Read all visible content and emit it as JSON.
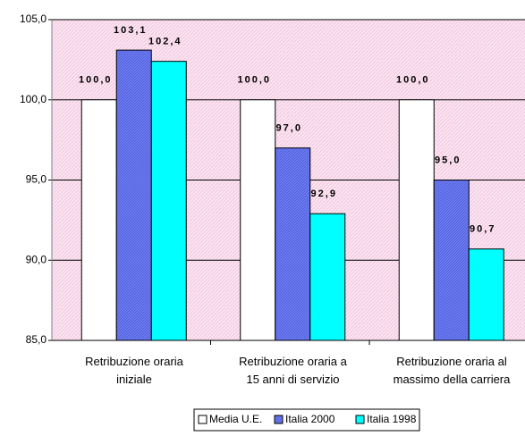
{
  "chart_data": {
    "type": "bar",
    "categories": [
      "Retribuzione  oraria\niniziale",
      "Retribuzione oraria a\n15 anni di servizio",
      "Retribuzione oraria al\nmassimo della carriera"
    ],
    "series": [
      {
        "name": "Media U.E.",
        "color": "#ffffff",
        "values": [
          100.0,
          100.0,
          100.0
        ],
        "value_labels": [
          "100,0",
          "100,0",
          "100,0"
        ]
      },
      {
        "name": "Italia 2000",
        "color": "#6f7ef2",
        "values": [
          103.1,
          97.0,
          95.0
        ],
        "value_labels": [
          "103,1",
          "97,0",
          "95,0"
        ]
      },
      {
        "name": "Italia 1998",
        "color": "#00ffff",
        "values": [
          102.4,
          92.9,
          90.7
        ],
        "value_labels": [
          "102,4",
          "92,9",
          "90,7"
        ]
      }
    ],
    "ylim": [
      85,
      105
    ],
    "yticks": [
      {
        "value": 85,
        "label": "85,0"
      },
      {
        "value": 90,
        "label": "90,0"
      },
      {
        "value": 95,
        "label": "95,0"
      },
      {
        "value": 100,
        "label": "100,0"
      },
      {
        "value": 105,
        "label": "105,0"
      }
    ],
    "grid": true,
    "legend": "bottom"
  }
}
